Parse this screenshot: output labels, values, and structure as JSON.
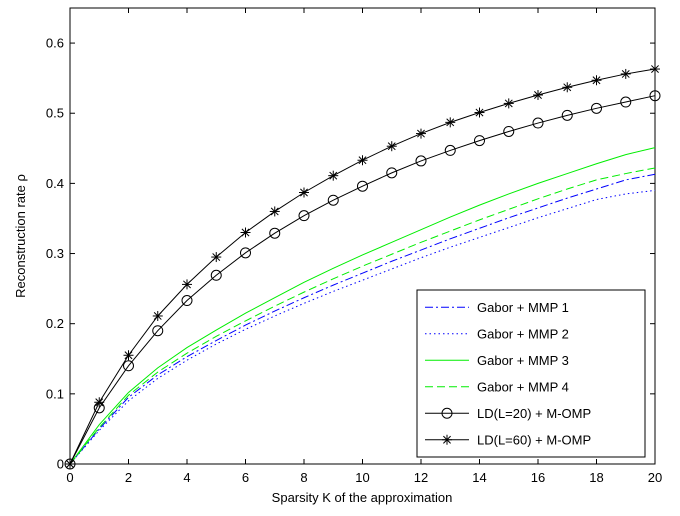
{
  "chart_data": {
    "type": "line",
    "xlabel": "Sparsity K of the approximation",
    "ylabel": "Reconstruction rate ρ",
    "xlim": [
      0,
      20
    ],
    "ylim": [
      0,
      0.65
    ],
    "xticks": [
      0,
      2,
      4,
      6,
      8,
      10,
      12,
      14,
      16,
      18,
      20
    ],
    "yticks": [
      0,
      0.1,
      0.2,
      0.3,
      0.4,
      0.5,
      0.6
    ],
    "xtick_labels": [
      "0",
      "2",
      "4",
      "6",
      "8",
      "10",
      "12",
      "14",
      "16",
      "18",
      "20"
    ],
    "ytick_labels": [
      "0",
      "0.1",
      "0.2",
      "0.3",
      "0.4",
      "0.5",
      "0.6"
    ],
    "grid": false,
    "legend_position": "bottom-right",
    "x": [
      0,
      1,
      2,
      3,
      4,
      5,
      6,
      7,
      8,
      9,
      10,
      11,
      12,
      13,
      14,
      15,
      16,
      17,
      18,
      19,
      20
    ],
    "series": [
      {
        "name": "Gabor + MMP 1",
        "color": "#0000ff",
        "dash": "dashdot",
        "marker": "none",
        "values": [
          0,
          0.05,
          0.095,
          0.127,
          0.153,
          0.176,
          0.198,
          0.218,
          0.237,
          0.255,
          0.272,
          0.289,
          0.305,
          0.321,
          0.336,
          0.351,
          0.365,
          0.379,
          0.392,
          0.405,
          0.413
        ]
      },
      {
        "name": "Gabor + MMP 2",
        "color": "#0000ff",
        "dash": "dotted",
        "marker": "none",
        "values": [
          0,
          0.048,
          0.09,
          0.122,
          0.148,
          0.171,
          0.192,
          0.211,
          0.229,
          0.246,
          0.262,
          0.278,
          0.294,
          0.309,
          0.323,
          0.337,
          0.351,
          0.364,
          0.377,
          0.385,
          0.39
        ]
      },
      {
        "name": "Gabor + MMP 3",
        "color": "#00ee00",
        "dash": "solid",
        "marker": "none",
        "values": [
          0,
          0.056,
          0.102,
          0.137,
          0.166,
          0.191,
          0.215,
          0.237,
          0.259,
          0.279,
          0.298,
          0.316,
          0.334,
          0.352,
          0.369,
          0.385,
          0.4,
          0.414,
          0.428,
          0.441,
          0.451
        ]
      },
      {
        "name": "Gabor + MMP 4",
        "color": "#00ee00",
        "dash": "dashed",
        "marker": "none",
        "values": [
          0,
          0.052,
          0.098,
          0.131,
          0.158,
          0.182,
          0.204,
          0.225,
          0.245,
          0.264,
          0.282,
          0.299,
          0.316,
          0.332,
          0.348,
          0.363,
          0.378,
          0.392,
          0.405,
          0.414,
          0.422
        ]
      },
      {
        "name": "LD(L=20) + M-OMP",
        "color": "#000000",
        "dash": "solid",
        "marker": "circle",
        "values": [
          0,
          0.08,
          0.14,
          0.19,
          0.233,
          0.269,
          0.301,
          0.329,
          0.354,
          0.376,
          0.396,
          0.415,
          0.432,
          0.447,
          0.461,
          0.474,
          0.486,
          0.497,
          0.507,
          0.516,
          0.525
        ]
      },
      {
        "name": "LD(L=60) + M-OMP",
        "color": "#000000",
        "dash": "solid",
        "marker": "asterisk",
        "values": [
          0,
          0.088,
          0.155,
          0.211,
          0.256,
          0.295,
          0.33,
          0.36,
          0.387,
          0.411,
          0.433,
          0.453,
          0.471,
          0.487,
          0.501,
          0.514,
          0.526,
          0.537,
          0.547,
          0.556,
          0.563
        ]
      }
    ]
  }
}
